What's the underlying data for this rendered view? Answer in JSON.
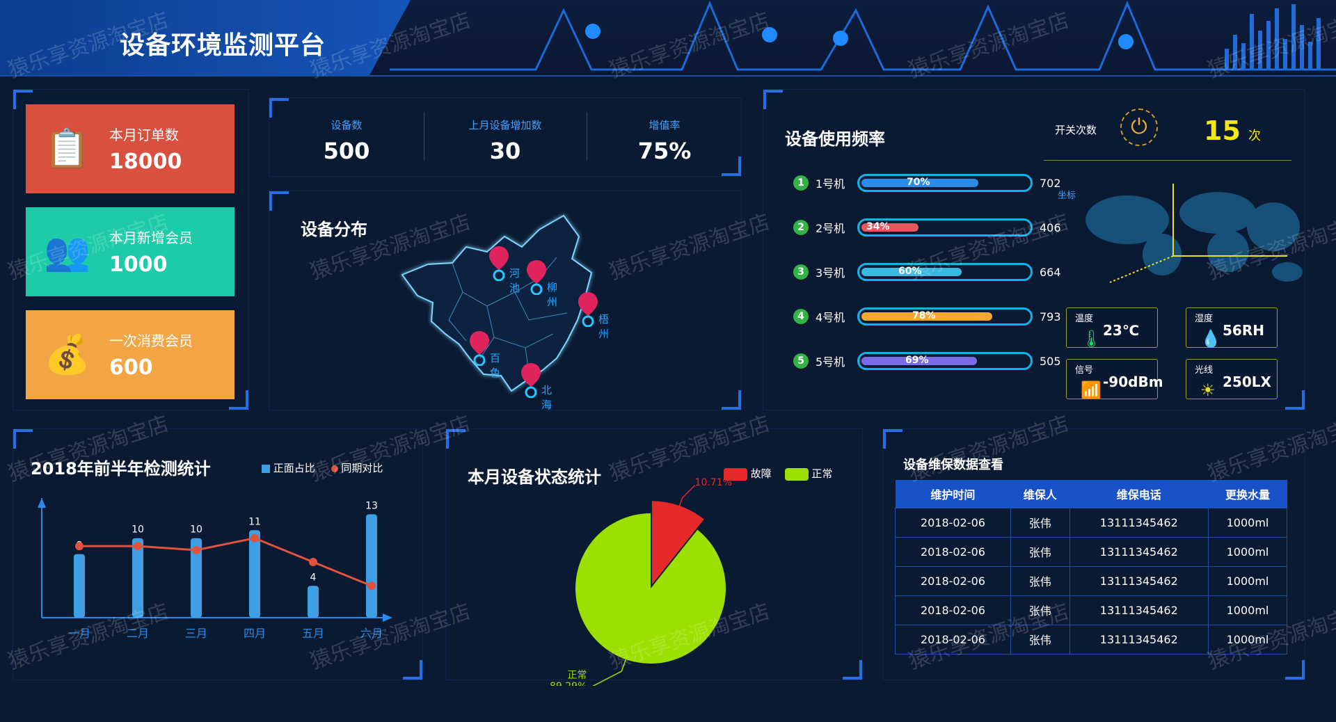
{
  "app": {
    "title": "设备环境监测平台"
  },
  "watermark": "猿乐享资源淘宝店",
  "cards": [
    {
      "label": "本月订单数",
      "value": "18000",
      "icon": "clipboard-icon",
      "color": "#d9503f"
    },
    {
      "label": "本月新增会员",
      "value": "1000",
      "icon": "members-icon",
      "color": "#1dcba8"
    },
    {
      "label": "一次消费会员",
      "value": "600",
      "icon": "money-bag-icon",
      "color": "#f2a544"
    }
  ],
  "kpis": [
    {
      "label": "设备数",
      "value": "500"
    },
    {
      "label": "上月设备增加数",
      "value": "30"
    },
    {
      "label": "增值率",
      "value": "75%"
    }
  ],
  "distribution": {
    "title": "设备分布",
    "cities": [
      "河池",
      "柳州",
      "梧州",
      "百色",
      "北海"
    ]
  },
  "usage": {
    "title": "设备使用频率",
    "switch_label": "开关次数",
    "switch_count": "15",
    "switch_unit": "次",
    "coord_label": "坐标",
    "machines": [
      {
        "num": "1",
        "name": "1号机",
        "pct": 70,
        "pct_label": "70%",
        "count": "702",
        "color": "#2a8ce8"
      },
      {
        "num": "2",
        "name": "2号机",
        "pct": 34,
        "pct_label": "34%",
        "count": "406",
        "color": "#e4595d"
      },
      {
        "num": "3",
        "name": "3号机",
        "pct": 60,
        "pct_label": "60%",
        "count": "664",
        "color": "#3ab8e0"
      },
      {
        "num": "4",
        "name": "4号机",
        "pct": 78,
        "pct_label": "78%",
        "count": "793",
        "color": "#f2a833"
      },
      {
        "num": "5",
        "name": "5号机",
        "pct": 69,
        "pct_label": "69%",
        "count": "505",
        "color": "#7a6be8"
      }
    ]
  },
  "sensors": [
    {
      "label": "温度",
      "value": "23℃",
      "icon": "thermometer-icon",
      "glyph": "🌡"
    },
    {
      "label": "湿度",
      "value": "56RH",
      "icon": "droplet-icon",
      "glyph": "💧"
    },
    {
      "label": "信号",
      "value": "-90dBm",
      "icon": "signal-icon",
      "glyph": "📶"
    },
    {
      "label": "光线",
      "value": "250LX",
      "icon": "sun-icon",
      "glyph": "☀"
    }
  ],
  "half_year": {
    "title": "2018年前半年检测统计",
    "legend": [
      "正面占比",
      "同期对比"
    ]
  },
  "status": {
    "title": "本月设备状态统计",
    "legend": [
      "故障",
      "正常"
    ]
  },
  "maintenance": {
    "title": "设备维保数据查看",
    "columns": [
      "维护时间",
      "维保人",
      "维保电话",
      "更换水量"
    ],
    "rows": [
      [
        "2018-02-06",
        "张伟",
        "13111345462",
        "1000ml"
      ],
      [
        "2018-02-06",
        "张伟",
        "13111345462",
        "1000ml"
      ],
      [
        "2018-02-06",
        "张伟",
        "13111345462",
        "1000ml"
      ],
      [
        "2018-02-06",
        "张伟",
        "13111345462",
        "1000ml"
      ],
      [
        "2018-02-06",
        "张伟",
        "13111345462",
        "1000ml"
      ]
    ]
  },
  "chart_data": [
    {
      "type": "bar",
      "title": "2018年前半年检测统计",
      "categories": [
        "一月",
        "二月",
        "三月",
        "四月",
        "五月",
        "六月"
      ],
      "series": [
        {
          "name": "正面占比",
          "type": "bar",
          "values": [
            8,
            10,
            10,
            11,
            4,
            13
          ],
          "color": "#3ea0e4"
        },
        {
          "name": "同期对比",
          "type": "line",
          "values": [
            9,
            9,
            8.5,
            10,
            7,
            4
          ],
          "color": "#e0533d"
        }
      ],
      "ylim": [
        0,
        14
      ],
      "grid": false,
      "legend": "top"
    },
    {
      "type": "pie",
      "title": "本月设备状态统计",
      "slices": [
        {
          "name": "故障",
          "value": 10.71,
          "label": "10.71%",
          "color": "#e62a2a"
        },
        {
          "name": "正常",
          "value": 89.29,
          "label": "89.29%",
          "color": "#9be000"
        }
      ],
      "legend": "top-right"
    }
  ]
}
